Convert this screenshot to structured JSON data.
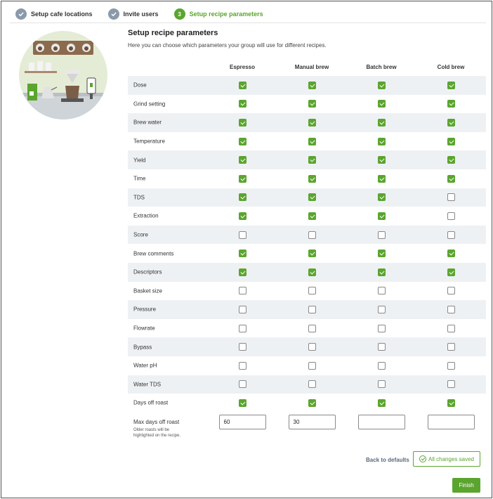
{
  "stepper": {
    "steps": [
      {
        "label": "Setup cafe locations",
        "state": "done"
      },
      {
        "label": "Invite users",
        "state": "done"
      },
      {
        "label": "Setup recipe parameters",
        "state": "active",
        "number": "3"
      }
    ]
  },
  "page": {
    "title": "Setup recipe parameters",
    "subtitle": "Here you can choose which parameters your group will use for different recipes."
  },
  "table": {
    "columns": [
      "Espresso",
      "Manual brew",
      "Batch brew",
      "Cold brew"
    ],
    "rows": [
      {
        "label": "Dose",
        "values": [
          true,
          true,
          true,
          true
        ]
      },
      {
        "label": "Grind setting",
        "values": [
          true,
          true,
          true,
          true
        ]
      },
      {
        "label": "Brew water",
        "values": [
          true,
          true,
          true,
          true
        ]
      },
      {
        "label": "Temperature",
        "values": [
          true,
          true,
          true,
          true
        ]
      },
      {
        "label": "Yield",
        "values": [
          true,
          true,
          true,
          true
        ]
      },
      {
        "label": "Time",
        "values": [
          true,
          true,
          true,
          true
        ]
      },
      {
        "label": "TDS",
        "values": [
          true,
          true,
          true,
          false
        ]
      },
      {
        "label": "Extraction",
        "values": [
          true,
          true,
          true,
          false
        ]
      },
      {
        "label": "Score",
        "values": [
          false,
          false,
          false,
          false
        ]
      },
      {
        "label": "Brew comments",
        "values": [
          true,
          true,
          true,
          true
        ]
      },
      {
        "label": "Descriptors",
        "values": [
          true,
          true,
          true,
          true
        ]
      },
      {
        "label": "Basket size",
        "values": [
          false,
          false,
          false,
          false
        ]
      },
      {
        "label": "Pressure",
        "values": [
          false,
          false,
          false,
          false
        ]
      },
      {
        "label": "Flowrate",
        "values": [
          false,
          false,
          false,
          false
        ]
      },
      {
        "label": "Bypass",
        "values": [
          false,
          false,
          false,
          false
        ]
      },
      {
        "label": "Water pH",
        "values": [
          false,
          false,
          false,
          false
        ]
      },
      {
        "label": "Water TDS",
        "values": [
          false,
          false,
          false,
          false
        ]
      },
      {
        "label": "Days off roast",
        "values": [
          true,
          true,
          true,
          true
        ]
      }
    ],
    "max_days": {
      "label": "Max days off roast",
      "hint": "Older roasts will be highlighted on the recipe.",
      "values": [
        "60",
        "30",
        "",
        ""
      ]
    }
  },
  "footer": {
    "back_to_defaults": "Back to defaults",
    "saved_label": "All changes saved",
    "finish_label": "Finish"
  },
  "colors": {
    "accent": "#5ba52f",
    "row_alt": "#eef1f4",
    "step_done": "#8a9aab"
  },
  "icons": {
    "step_done": "check-icon",
    "saved": "check-circle-icon"
  }
}
